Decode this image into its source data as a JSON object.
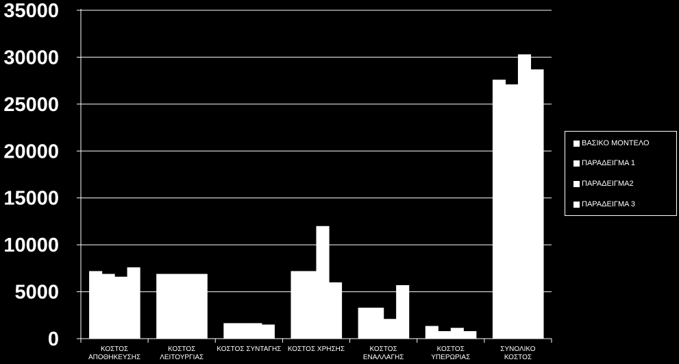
{
  "chart_data": {
    "type": "bar",
    "categories": [
      [
        "ΚΟΣΤΟΣ",
        "ΑΠΟΘΗΚΕΥΣΗΣ"
      ],
      [
        "ΚΟΣΤΟΣ",
        "ΛΕΙΤΟΥΡΓΙΑΣ"
      ],
      [
        "ΚΟΣΤΟΣ ΣΥΝΤΑΓΗΣ"
      ],
      [
        "ΚΟΣΤΟΣ ΧΡΗΣΗΣ"
      ],
      [
        "ΚΟΣΤΟΣ",
        "ΕΝΑΛΛΑΓΗΣ"
      ],
      [
        "ΚΟΣΤΟΣ",
        "ΥΠΕΡΩΡΙΑΣ"
      ],
      [
        "ΣΥΝΟΛΙΚΟ",
        "ΚΟΣΤΟΣ"
      ]
    ],
    "series": [
      {
        "name": "ΒΑΣΙΚΟ  ΜΟΝΤΕΛΟ",
        "values": [
          7200,
          6900,
          1650,
          7200,
          3300,
          1350,
          27600
        ]
      },
      {
        "name": "ΠΑΡΑΔΕΙΓΜΑ  1",
        "values": [
          6900,
          6900,
          1650,
          7200,
          3300,
          800,
          27100
        ]
      },
      {
        "name": "ΠΑΡΑΔΕΙΓΜΑ2",
        "values": [
          6600,
          6900,
          1650,
          12000,
          2100,
          1150,
          30300
        ]
      },
      {
        "name": "ΠΑΡΑΔΕΙΓΜΑ  3",
        "values": [
          7600,
          6900,
          1500,
          6000,
          5700,
          800,
          28700
        ]
      }
    ],
    "yticks": [
      "0",
      "5000",
      "10000",
      "15000",
      "20000",
      "25000",
      "30000",
      "35000"
    ],
    "ylim": [
      0,
      35000
    ],
    "grid": true,
    "legend_position": "right",
    "colors": {
      "background": "#000000",
      "bars": "#ffffff",
      "grid": "#ffffff",
      "text": "#ffffff"
    }
  }
}
